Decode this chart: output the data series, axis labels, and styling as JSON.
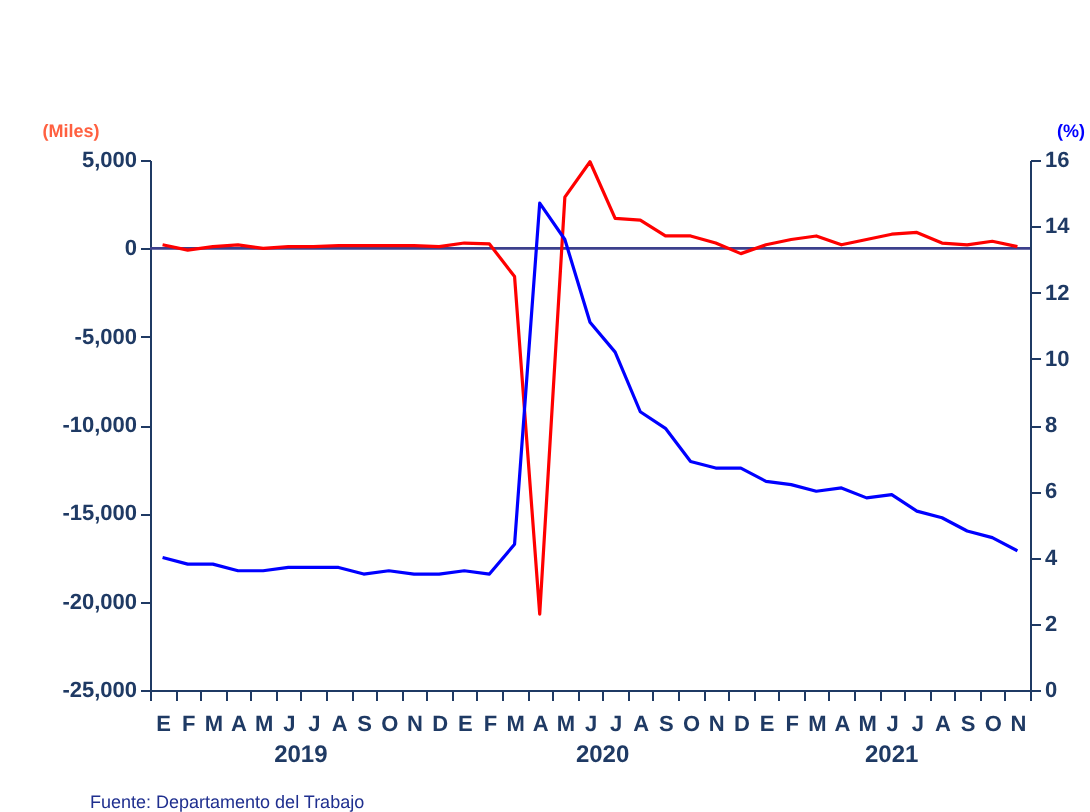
{
  "chart_data": {
    "type": "line",
    "ylabel": "(Miles)",
    "y2label": "(%)",
    "categories": [
      "E",
      "F",
      "M",
      "A",
      "M",
      "J",
      "J",
      "A",
      "S",
      "O",
      "N",
      "D",
      "E",
      "F",
      "M",
      "A",
      "M",
      "J",
      "J",
      "A",
      "S",
      "O",
      "N",
      "D",
      "E",
      "F",
      "M",
      "A",
      "M",
      "J",
      "J",
      "A",
      "S",
      "O",
      "N"
    ],
    "series": [
      {
        "color": "#ff0000",
        "values": [
          200,
          -100,
          100,
          200,
          0,
          100,
          100,
          150,
          150,
          150,
          150,
          100,
          300,
          250,
          -1600,
          -20700,
          2900,
          4900,
          1700,
          1600,
          700,
          700,
          300,
          -300,
          200,
          500,
          700,
          200,
          500,
          800,
          900,
          300,
          200,
          400,
          100
        ]
      },
      {
        "color": "#0000ff",
        "axis": "y2",
        "values": [
          4.0,
          3.8,
          3.8,
          3.6,
          3.6,
          3.7,
          3.7,
          3.7,
          3.5,
          3.6,
          3.5,
          3.5,
          3.6,
          3.5,
          4.4,
          14.7,
          13.6,
          11.1,
          10.2,
          8.4,
          7.9,
          6.9,
          6.7,
          6.7,
          6.3,
          6.2,
          6.0,
          6.1,
          5.8,
          5.9,
          5.4,
          5.2,
          4.8,
          4.6,
          4.2
        ]
      }
    ],
    "ylim": [
      -25000,
      5000
    ],
    "yticks": [
      {
        "value": -25000,
        "label": "-25,000"
      },
      {
        "value": -20000,
        "label": "-20,000"
      },
      {
        "value": -15000,
        "label": "-15,000"
      },
      {
        "value": -10000,
        "label": "-10,000"
      },
      {
        "value": -5000,
        "label": "-5,000"
      },
      0,
      {
        "value": 5000,
        "label": "5,000"
      }
    ],
    "y2lim": [
      0,
      16
    ],
    "y2ticks": [
      0,
      2,
      4,
      6,
      8,
      10,
      12,
      14,
      16
    ],
    "ref_lines": [
      {
        "axis": "y",
        "value": 0,
        "color": "#3c3f8c"
      }
    ],
    "annotations": [
      "2019",
      "2020",
      "2021",
      "Fuente: Departamento del Trabajo"
    ],
    "grid": false
  }
}
